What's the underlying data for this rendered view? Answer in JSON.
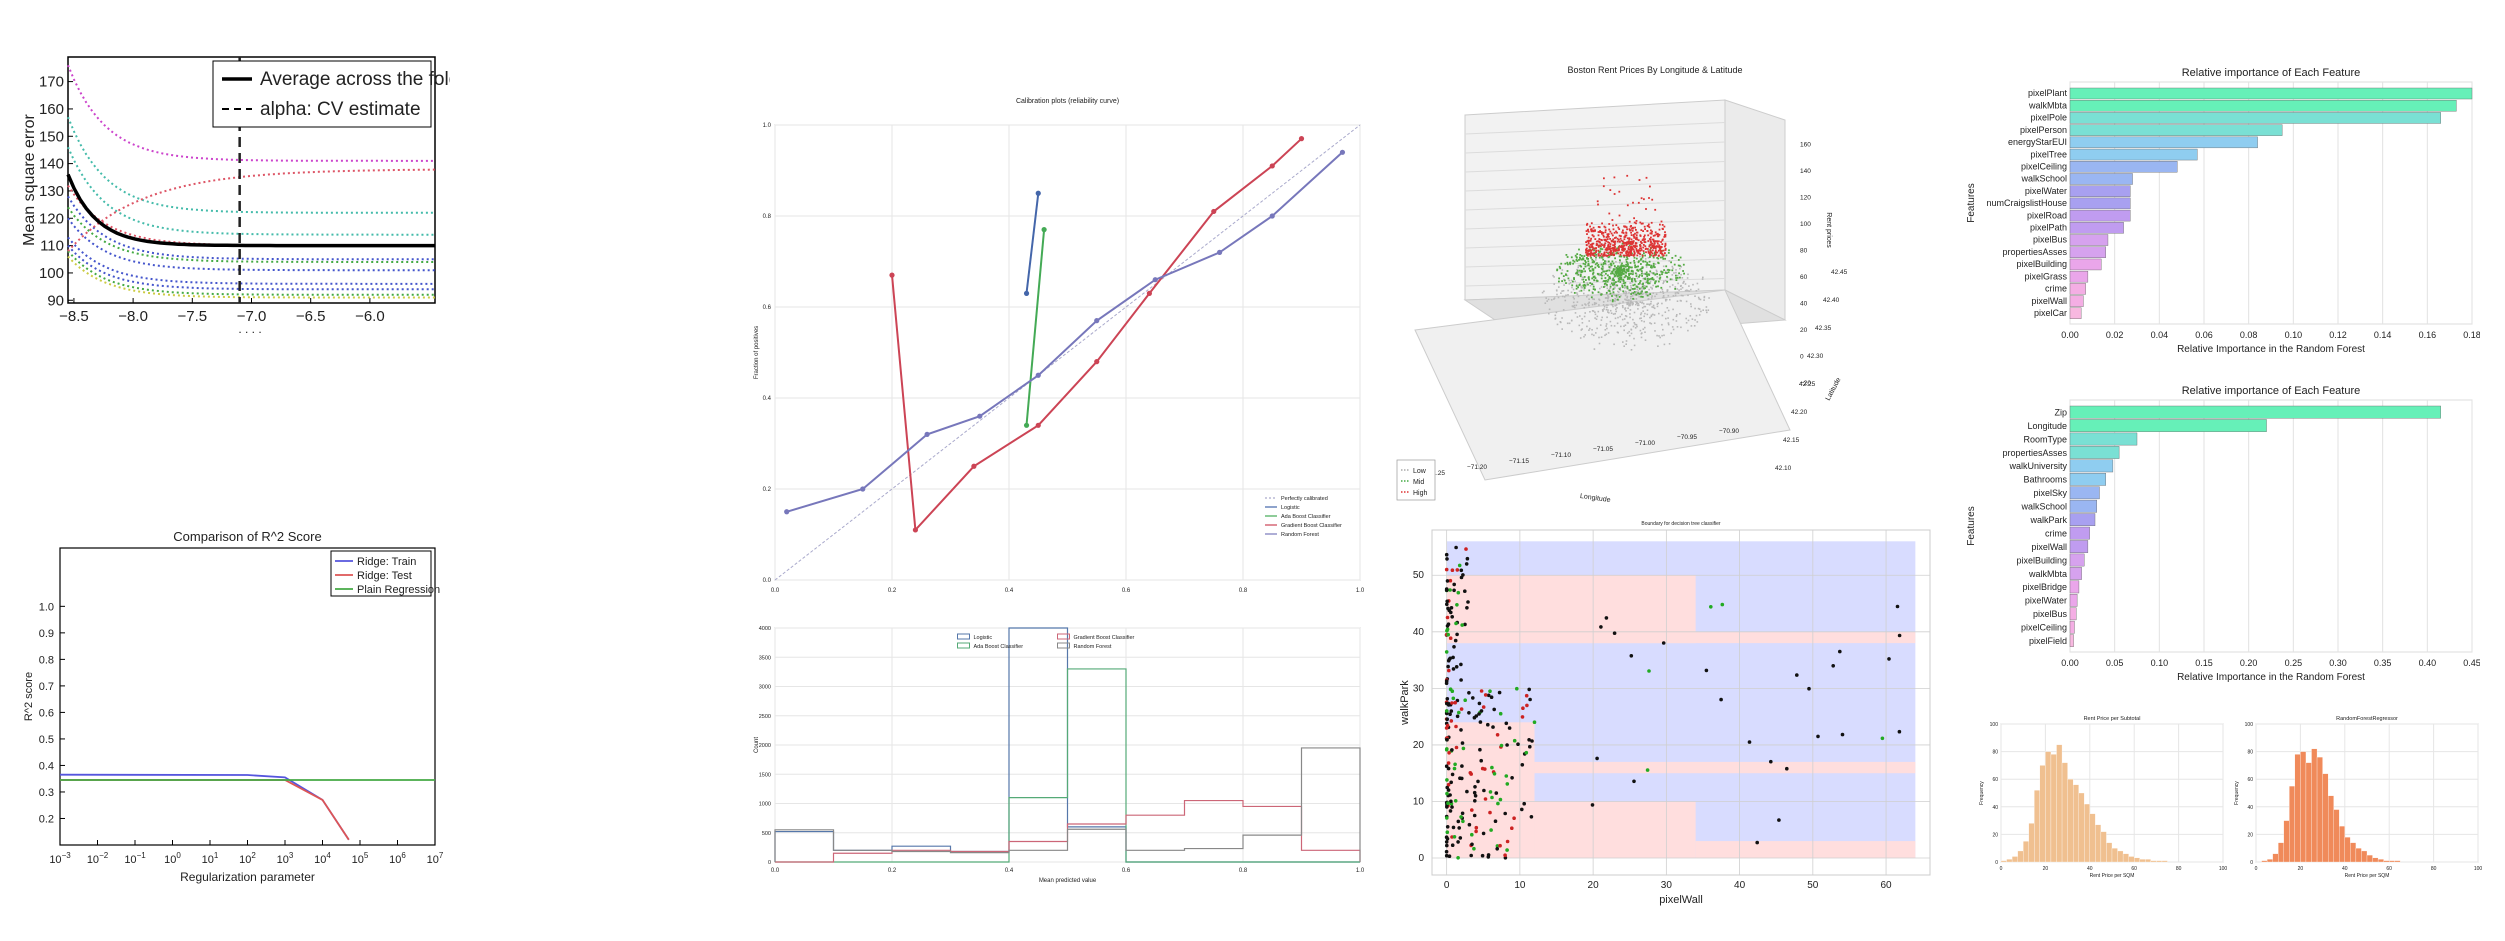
{
  "chart_data": [
    {
      "type": "line",
      "xlim": [
        -8.55,
        -5.45
      ],
      "ylim": [
        89,
        179
      ],
      "ylabel": "Mean square error",
      "x_ticks": [
        "-8.5",
        "-8.0",
        "-7.5",
        "-7.0",
        "-6.5",
        "-6.0"
      ],
      "y_ticks": [
        "90",
        "100",
        "110",
        "120",
        "130",
        "140",
        "150",
        "160",
        "170"
      ],
      "legend": [
        "Average across the folds",
        "alpha: CV estimate"
      ],
      "legend_position": "top-right",
      "alpha_cv": -7.1,
      "average": {
        "start": 136,
        "end": 110
      },
      "folds": [
        {
          "start": 176,
          "end": 141,
          "color": "#cc44cc"
        },
        {
          "start": 157,
          "end": 122,
          "color": "#44bbaa"
        },
        {
          "start": 146,
          "end": 114,
          "color": "#44bbaa"
        },
        {
          "start": 132,
          "end": 110,
          "color": "#dd5566"
        },
        {
          "start": 128,
          "end": 105,
          "color": "#4455cc"
        },
        {
          "start": 124,
          "end": 104,
          "color": "#44aa44"
        },
        {
          "start": 120,
          "end": 101,
          "color": "#4455cc"
        },
        {
          "start": 113,
          "end": 96,
          "color": "#4455cc"
        },
        {
          "start": 110,
          "end": 94,
          "color": "#4455cc"
        },
        {
          "start": 108,
          "end": 92,
          "color": "#44aa44"
        },
        {
          "start": 106,
          "end": 91,
          "color": "#cccc44"
        }
      ],
      "rising": {
        "start": 108,
        "end": 138,
        "color": "#dd5566"
      },
      "dots_text": ". . . ."
    },
    {
      "type": "line",
      "title": "Comparison of R^2 Score",
      "xlabel": "Regularization parameter",
      "ylabel": "R^2 score",
      "x_log_range": [
        -3,
        7
      ],
      "ylim": [
        0.1,
        1.22
      ],
      "y_ticks": [
        "0.2",
        "0.3",
        "0.4",
        "0.5",
        "0.6",
        "0.7",
        "0.8",
        "0.9",
        "1.0"
      ],
      "legend_position": "top-right",
      "series": [
        {
          "name": "Ridge: Train",
          "color": "#5555dd",
          "points": [
            [
              -3,
              0.365
            ],
            [
              2,
              0.364
            ],
            [
              3,
              0.355
            ],
            [
              4,
              0.27
            ],
            [
              4.7,
              0.12
            ]
          ]
        },
        {
          "name": "Ridge: Test",
          "color": "#dd5555",
          "points": [
            [
              -3,
              0.345
            ],
            [
              2,
              0.345
            ],
            [
              3,
              0.345
            ],
            [
              4,
              0.27
            ],
            [
              4.7,
              0.12
            ]
          ]
        },
        {
          "name": "Plain Regression",
          "color": "#44aa44",
          "points": [
            [
              -3,
              0.345
            ],
            [
              7,
              0.345
            ]
          ]
        }
      ]
    },
    {
      "type": "line",
      "title": "Calibration plots  (reliability curve)",
      "ylabel": "Fraction of positives",
      "xlim": [
        0,
        1
      ],
      "ylim": [
        0,
        1
      ],
      "x_ticks": [
        "0.0",
        "0.2",
        "0.4",
        "0.6",
        "0.8",
        "1.0"
      ],
      "y_ticks": [
        "0.0",
        "0.2",
        "0.4",
        "0.6",
        "0.8",
        "1.0"
      ],
      "legend_position": "bottom-right",
      "legend": [
        "Perfectly calibrated",
        "Logistic",
        "Ada Boost Classifier",
        "Gradient Boost Classifier",
        "Random Forest"
      ],
      "series": [
        {
          "name": "Logistic",
          "color": "#4466aa",
          "points": [
            [
              0.43,
              0.63
            ],
            [
              0.45,
              0.85
            ]
          ]
        },
        {
          "name": "Ada Boost Classifier",
          "color": "#44aa55",
          "points": [
            [
              0.43,
              0.34
            ],
            [
              0.46,
              0.77
            ]
          ]
        },
        {
          "name": "Gradient Boost Classifier",
          "color": "#cc4455",
          "points": [
            [
              0.2,
              0.67
            ],
            [
              0.24,
              0.11
            ],
            [
              0.34,
              0.25
            ],
            [
              0.45,
              0.34
            ],
            [
              0.55,
              0.48
            ],
            [
              0.64,
              0.63
            ],
            [
              0.75,
              0.81
            ],
            [
              0.85,
              0.91
            ],
            [
              0.9,
              0.97
            ]
          ]
        },
        {
          "name": "Random Forest",
          "color": "#7777bb",
          "points": [
            [
              0.02,
              0.15
            ],
            [
              0.15,
              0.2
            ],
            [
              0.26,
              0.32
            ],
            [
              0.35,
              0.36
            ],
            [
              0.45,
              0.45
            ],
            [
              0.55,
              0.57
            ],
            [
              0.65,
              0.66
            ],
            [
              0.76,
              0.72
            ],
            [
              0.85,
              0.8
            ],
            [
              0.97,
              0.94
            ]
          ]
        }
      ]
    },
    {
      "type": "bar",
      "xlabel": "Mean predicted value",
      "ylabel": "Count",
      "xlim": [
        0,
        1
      ],
      "ylim": [
        0,
        4000
      ],
      "x_ticks": [
        "0.0",
        "0.2",
        "0.4",
        "0.6",
        "0.8",
        "1.0"
      ],
      "y_ticks": [
        "0",
        "500",
        "1000",
        "1500",
        "2000",
        "2500",
        "3000",
        "3500",
        "4000"
      ],
      "legend_position": "top-center",
      "legend": [
        "Logistic",
        "Ada Boost Classifier",
        "Gradient Boost Classifier",
        "Random Forest"
      ],
      "series": [
        {
          "name": "Logistic",
          "color": "#5577aa",
          "edges": [
            0,
            0.1,
            0.2,
            0.3,
            0.4,
            0.5,
            0.6,
            0.7,
            0.8,
            0.9,
            1.0
          ],
          "values": [
            520,
            200,
            270,
            180,
            4000,
            600,
            0,
            0,
            0,
            0
          ]
        },
        {
          "name": "Ada Boost Classifier",
          "color": "#55aa77",
          "edges": [
            0,
            0.1,
            0.2,
            0.3,
            0.4,
            0.5,
            0.6,
            0.7,
            0.8,
            0.9,
            1.0
          ],
          "values": [
            0,
            0,
            0,
            0,
            1100,
            3300,
            0,
            0,
            0,
            0
          ]
        },
        {
          "name": "Gradient Boost Classifier",
          "color": "#cc6677",
          "edges": [
            0,
            0.1,
            0.2,
            0.3,
            0.4,
            0.5,
            0.6,
            0.7,
            0.8,
            0.9,
            1.0
          ],
          "values": [
            0,
            150,
            200,
            180,
            350,
            650,
            800,
            1050,
            950,
            200
          ]
        },
        {
          "name": "Random Forest",
          "color": "#888888",
          "edges": [
            0,
            0.1,
            0.2,
            0.3,
            0.4,
            0.5,
            0.6,
            0.7,
            0.8,
            0.9,
            1.0
          ],
          "values": [
            550,
            200,
            180,
            160,
            200,
            560,
            200,
            230,
            460,
            1950
          ]
        }
      ]
    },
    {
      "type": "scatter",
      "title": "Boston Rent Prices By Longitude & Latitude",
      "xlabel": "Longitude",
      "ylabel": "Latitude",
      "zlabel": "Rent prices",
      "x_ticks": [
        "−71.25",
        "−71.20",
        "−71.15",
        "−71.10",
        "−71.05",
        "−71.00",
        "−70.95",
        "−70.90"
      ],
      "y_ticks": [
        "42.10",
        "42.15",
        "42.20",
        "42.25",
        "42.30",
        "42.35",
        "42.40",
        "42.45"
      ],
      "z_ticks": [
        "−20",
        "0",
        "20",
        "40",
        "60",
        "80",
        "100",
        "120",
        "140",
        "160"
      ],
      "legend_position": "bottom-left",
      "legend": [
        {
          "name": "Low",
          "color": "#aaaaaa"
        },
        {
          "name": "Mid",
          "color": "#44aa44"
        },
        {
          "name": "High",
          "color": "#dd3333"
        }
      ]
    },
    {
      "type": "scatter",
      "title": "Boundary for decision tree classifier",
      "xlabel": "pixelWall",
      "ylabel": "walkPark",
      "xlim": [
        -2,
        66
      ],
      "ylim": [
        -3,
        58
      ],
      "x_ticks": [
        "0",
        "10",
        "20",
        "30",
        "40",
        "50",
        "60"
      ],
      "y_ticks": [
        "0",
        "10",
        "20",
        "30",
        "40",
        "50"
      ],
      "regions": [
        {
          "x": [
            0,
            64
          ],
          "y": [
            0,
            56
          ],
          "color": "#d8dcff"
        },
        {
          "x": [
            0,
            34
          ],
          "y": [
            38,
            50
          ],
          "color": "#ffdede"
        },
        {
          "x": [
            0,
            64
          ],
          "y": [
            38,
            40
          ],
          "color": "#ffdede"
        },
        {
          "x": [
            0,
            12
          ],
          "y": [
            0,
            24
          ],
          "color": "#ffdede"
        },
        {
          "x": [
            12,
            64
          ],
          "y": [
            15,
            17
          ],
          "color": "#ffdede"
        },
        {
          "x": [
            12,
            34
          ],
          "y": [
            0,
            10
          ],
          "color": "#ffdede"
        },
        {
          "x": [
            34,
            64
          ],
          "y": [
            0,
            3
          ],
          "color": "#ffdede"
        }
      ]
    },
    {
      "type": "bar",
      "title": "Relative importance of Each Feature",
      "xlabel": "Relative Importance in the Random Forest",
      "ylabel": "Features",
      "xlim": [
        0,
        0.18
      ],
      "x_ticks": [
        "0.00",
        "0.02",
        "0.04",
        "0.06",
        "0.08",
        "0.10",
        "0.12",
        "0.14",
        "0.16",
        "0.18"
      ],
      "categories": [
        "pixelPlant",
        "walkMbta",
        "pixelPole",
        "pixelPerson",
        "energyStarEUI",
        "pixelTree",
        "pixelCeiling",
        "walkSchool",
        "pixelWater",
        "numCraigslistHouse",
        "pixelRoad",
        "pixelPath",
        "pixelBus",
        "propertiesAsses",
        "pixelBuilding",
        "pixelGrass",
        "crime",
        "pixelWall",
        "pixelCar"
      ],
      "values": [
        0.18,
        0.173,
        0.166,
        0.095,
        0.084,
        0.057,
        0.048,
        0.028,
        0.027,
        0.027,
        0.027,
        0.024,
        0.017,
        0.016,
        0.014,
        0.008,
        0.007,
        0.006,
        0.005
      ]
    },
    {
      "type": "bar",
      "title": "Relative importance of Each Feature",
      "xlabel": "Relative Importance in the Random Forest",
      "ylabel": "Features",
      "xlim": [
        0,
        0.45
      ],
      "x_ticks": [
        "0.00",
        "0.05",
        "0.10",
        "0.15",
        "0.20",
        "0.25",
        "0.30",
        "0.35",
        "0.40",
        "0.45"
      ],
      "categories": [
        "Zip",
        "Longitude",
        "RoomType",
        "propertiesAsses",
        "walkUniversity",
        "Bathrooms",
        "pixelSky",
        "walkSchool",
        "walkPark",
        "crime",
        "pixelWall",
        "pixelBuilding",
        "walkMbta",
        "pixelBridge",
        "pixelWater",
        "pixelBus",
        "pixelCeiling",
        "pixelField"
      ],
      "values": [
        0.415,
        0.22,
        0.075,
        0.055,
        0.048,
        0.04,
        0.033,
        0.03,
        0.028,
        0.022,
        0.02,
        0.016,
        0.013,
        0.01,
        0.008,
        0.007,
        0.005,
        0.004
      ]
    },
    {
      "type": "bar",
      "title": "Rent Price per Subtotal",
      "xlabel": "Rent Price per SQM",
      "ylabel": "Frequency",
      "color": "#f0c090",
      "x_ticks": [
        "0",
        "20",
        "40",
        "60",
        "80",
        "100"
      ],
      "y_ticks": [
        "0",
        "20",
        "40",
        "60",
        "80",
        "100"
      ],
      "values": [
        1,
        2,
        4,
        8,
        15,
        28,
        52,
        70,
        80,
        78,
        85,
        72,
        60,
        56,
        50,
        42,
        35,
        27,
        22,
        14,
        10,
        8,
        6,
        4,
        3,
        2,
        2,
        1,
        1,
        1,
        0,
        0,
        0,
        0,
        0,
        0,
        0,
        0,
        0,
        0
      ],
      "ymax": 100
    },
    {
      "type": "bar",
      "title": "RandomForestRegressor",
      "xlabel": "Rent Price per SQM",
      "ylabel": "Frequency",
      "color": "#f08a5a",
      "x_ticks": [
        "0",
        "20",
        "40",
        "60",
        "80",
        "100"
      ],
      "y_ticks": [
        "0",
        "20",
        "40",
        "60",
        "80",
        "100"
      ],
      "values": [
        0,
        1,
        2,
        6,
        14,
        30,
        55,
        78,
        80,
        72,
        82,
        76,
        64,
        48,
        38,
        26,
        18,
        14,
        10,
        8,
        5,
        3,
        2,
        1,
        1,
        1,
        0,
        0,
        0,
        0,
        0,
        0,
        0,
        0,
        0,
        0,
        0,
        0,
        0,
        0
      ],
      "ymax": 100
    }
  ]
}
